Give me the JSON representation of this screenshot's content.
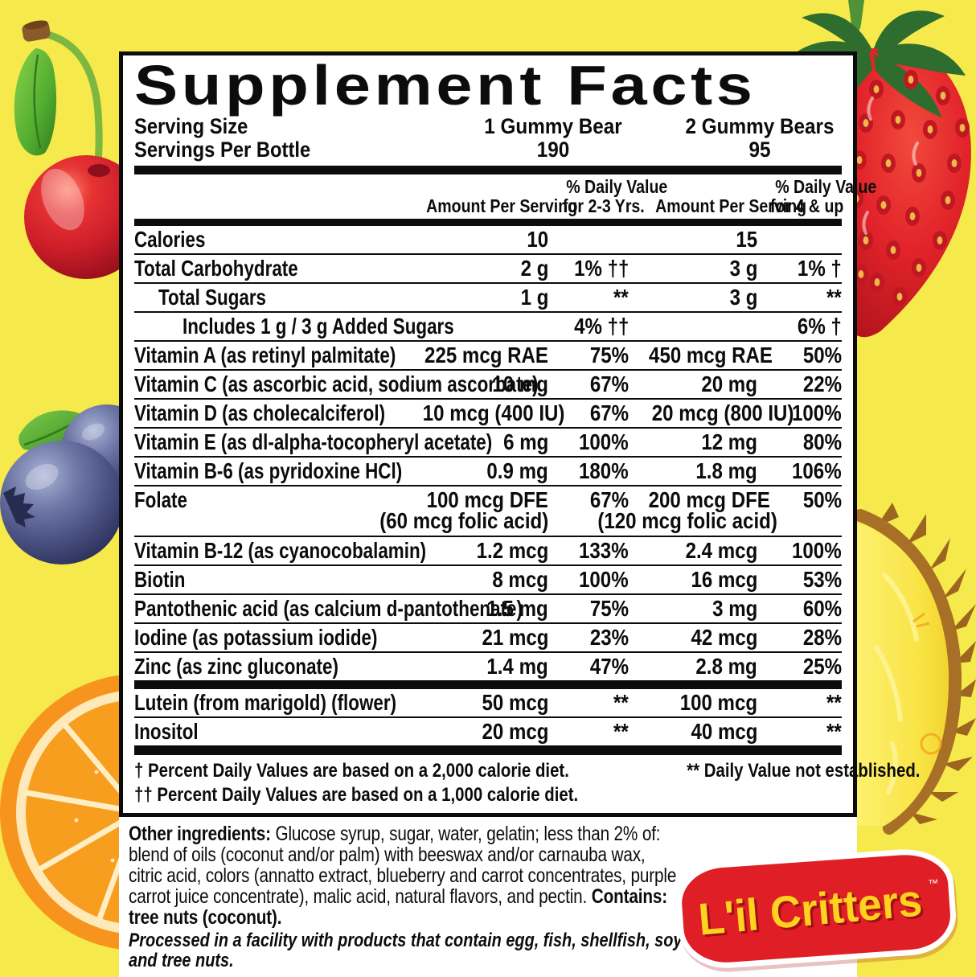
{
  "page": {
    "background_color": "#f6e94b",
    "label_bg": "#ffffff",
    "rule_color": "#0c0c0c"
  },
  "label": {
    "title": "Supplement Facts",
    "serving_rows": [
      {
        "label": "Serving Size",
        "col1": "1 Gummy Bear",
        "col2": "2 Gummy Bears"
      },
      {
        "label": "Servings Per Bottle",
        "col1": "190",
        "col2": "95"
      }
    ],
    "header": {
      "amount1": "Amount Per Serving",
      "dv1": [
        "% Daily Value",
        "for 2-3 Yrs."
      ],
      "amount2": "Amount Per Serving",
      "dv2": [
        "% Daily Value",
        "for 4 & up"
      ]
    },
    "rows_main": [
      {
        "name": "Calories",
        "indent": 0,
        "amt1": "10",
        "dv1": "",
        "amt2": "15",
        "dv2": ""
      },
      {
        "name": "Total Carbohydrate",
        "indent": 0,
        "amt1": "2 g",
        "dv1": "1% ††",
        "amt2": "3 g",
        "dv2": "1% †"
      },
      {
        "name": "Total Sugars",
        "indent": 1,
        "amt1": "1 g",
        "dv1": "**",
        "amt2": "3 g",
        "dv2": "**"
      },
      {
        "name": "Includes 1 g / 3 g Added Sugars",
        "indent": 2,
        "amt1": "",
        "dv1": "4% ††",
        "amt2": "",
        "dv2": "6% †"
      },
      {
        "name": "Vitamin A (as retinyl palmitate)",
        "indent": 0,
        "amt1": "225 mcg RAE",
        "dv1": "75%",
        "amt2": "450 mcg RAE",
        "dv2": "50%"
      },
      {
        "name": "Vitamin C (as ascorbic acid, sodium ascorbate)",
        "indent": 0,
        "amt1": "10 mg",
        "dv1": "67%",
        "amt2": "20 mg",
        "dv2": "22%"
      },
      {
        "name": "Vitamin D (as cholecalciferol)",
        "indent": 0,
        "amt1": "10 mcg (400 IU)",
        "dv1": "67%",
        "amt2": "20 mcg (800 IU)",
        "dv2": "100%"
      },
      {
        "name": "Vitamin E (as dl-alpha-tocopheryl acetate)",
        "indent": 0,
        "amt1": "6 mg",
        "dv1": "100%",
        "amt2": "12 mg",
        "dv2": "80%"
      },
      {
        "name": "Vitamin B-6 (as pyridoxine HCl)",
        "indent": 0,
        "amt1": "0.9 mg",
        "dv1": "180%",
        "amt2": "1.8 mg",
        "dv2": "106%"
      },
      {
        "name": "Folate",
        "indent": 0,
        "amt1": "100 mcg DFE",
        "dv1": "67%",
        "amt2": "200 mcg DFE",
        "dv2": "50%",
        "sub1": "(60 mcg folic acid)",
        "sub2": "(120 mcg folic acid)"
      },
      {
        "name": "Vitamin B-12 (as cyanocobalamin)",
        "indent": 0,
        "amt1": "1.2 mcg",
        "dv1": "133%",
        "amt2": "2.4 mcg",
        "dv2": "100%"
      },
      {
        "name": "Biotin",
        "indent": 0,
        "amt1": "8 mcg",
        "dv1": "100%",
        "amt2": "16 mcg",
        "dv2": "53%"
      },
      {
        "name": "Pantothenic acid (as calcium d-pantothenate)",
        "indent": 0,
        "amt1": "1.5 mg",
        "dv1": "75%",
        "amt2": "3 mg",
        "dv2": "60%"
      },
      {
        "name": "Iodine (as potassium iodide)",
        "indent": 0,
        "amt1": "21 mcg",
        "dv1": "23%",
        "amt2": "42 mcg",
        "dv2": "28%"
      },
      {
        "name": "Zinc (as zinc gluconate)",
        "indent": 0,
        "amt1": "1.4 mg",
        "dv1": "47%",
        "amt2": "2.8 mg",
        "dv2": "25%"
      }
    ],
    "rows_extra": [
      {
        "name": "Lutein (from marigold) (flower)",
        "indent": 0,
        "amt1": "50 mcg",
        "dv1": "**",
        "amt2": "100 mcg",
        "dv2": "**"
      },
      {
        "name": "Inositol",
        "indent": 0,
        "amt1": "20 mcg",
        "dv1": "**",
        "amt2": "40 mcg",
        "dv2": "**"
      }
    ],
    "footnotes": {
      "line1_left": "† Percent Daily Values are based on a 2,000 calorie diet.",
      "line1_right": "** Daily Value not established.",
      "line2": "†† Percent Daily Values are based on a 1,000 calorie diet."
    },
    "ingredients": {
      "prefix": "Other ingredients:",
      "body": " Glucose syrup, sugar, water, gelatin; less than 2% of: blend of oils (coconut and/or palm) with beeswax and/or carnauba wax, citric acid, colors (annatto extract, blueberry and carrot concentrates, purple carrot juice concentrate), malic acid, natural flavors, and pectin. ",
      "contains": "Contains: tree nuts (coconut).",
      "allergen_note": "Processed in a facility with products that contain egg, fish, shellfish, soy and tree nuts."
    }
  },
  "logo": {
    "text": "L'il Critters",
    "tm": "™",
    "blob_color": "#e01e26",
    "letter_color": "#ffd21f"
  },
  "fruits": [
    "cherry",
    "strawberry",
    "blueberries",
    "orange-slice",
    "pineapple-wedge"
  ]
}
